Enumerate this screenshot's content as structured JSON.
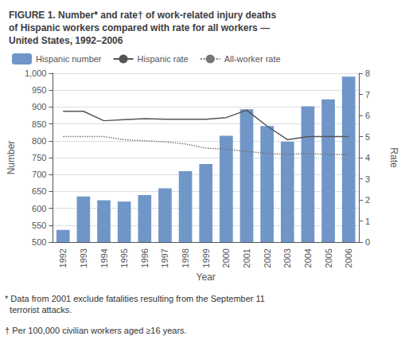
{
  "chart_data": {
    "type": "bar",
    "title": "FIGURE 1. Number* and rate† of work-related injury deaths\nof Hispanic workers compared with rate for all workers —\nUnited States, 1992–2006",
    "notes": [
      "* Data from 2001 exclude fatalities resulting from the September 11\n  terrorist attacks.",
      "† Per 100,000 civilian workers aged ≥16 years."
    ],
    "xlabel": "Year",
    "ylabel": "Number",
    "y2label": "Rate",
    "categories": [
      "1992",
      "1993",
      "1994",
      "1995",
      "1996",
      "1997",
      "1998",
      "1999",
      "2000",
      "2001",
      "2002",
      "2003",
      "2004",
      "2005",
      "2006"
    ],
    "series": [
      {
        "name": "Hispanic number",
        "type": "bar",
        "color": "#7096c8",
        "values": [
          536,
          635,
          624,
          620,
          639,
          659,
          710,
          731,
          815,
          893,
          844,
          797,
          902,
          923,
          990
        ]
      },
      {
        "name": "Hispanic rate",
        "type": "line",
        "axis": "y2",
        "color": "#555555",
        "line_style": "solid",
        "values": [
          6.2,
          6.2,
          5.75,
          5.8,
          5.85,
          5.82,
          5.82,
          5.82,
          5.9,
          6.25,
          5.5,
          4.85,
          5.0,
          5.0,
          5.0
        ]
      },
      {
        "name": "All-worker rate",
        "type": "line",
        "axis": "y2",
        "color": "#777777",
        "line_style": "dotted",
        "values": [
          5.0,
          5.0,
          5.0,
          4.85,
          4.8,
          4.75,
          4.65,
          4.45,
          4.4,
          4.3,
          4.2,
          4.15,
          4.2,
          4.15,
          4.15
        ]
      }
    ],
    "ylim": [
      500,
      1000
    ],
    "yticks": [
      500,
      550,
      600,
      650,
      700,
      750,
      800,
      850,
      900,
      950,
      1000
    ],
    "y2lim": [
      0,
      8
    ],
    "y2ticks": [
      0,
      1,
      2,
      3,
      4,
      5,
      6,
      7,
      8
    ],
    "grid": true,
    "legend": "upper left"
  }
}
